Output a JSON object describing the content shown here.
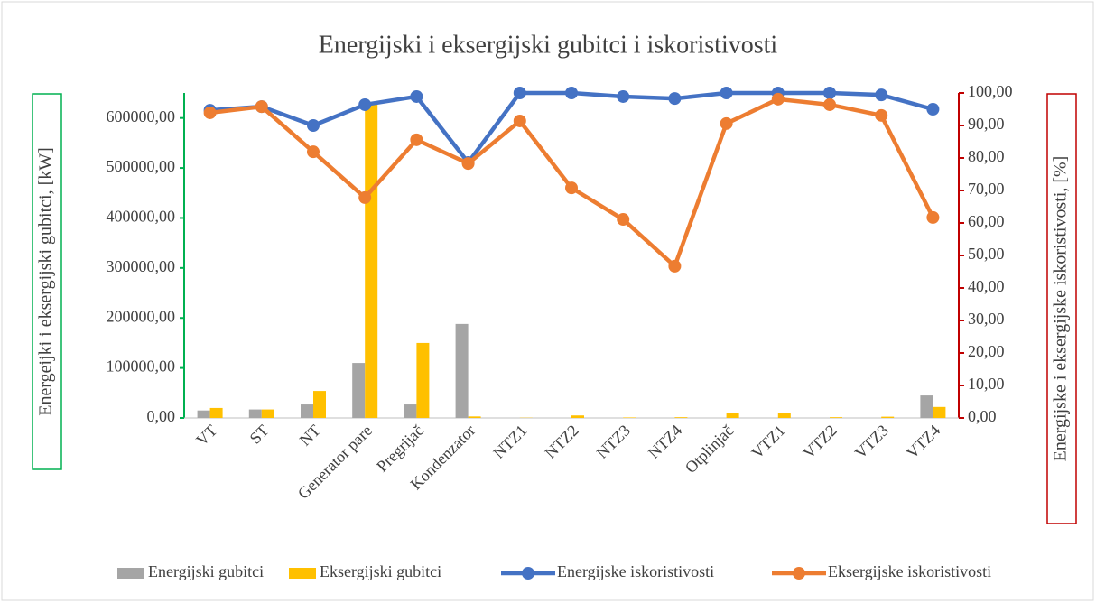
{
  "chart_data": {
    "type": "bar-line",
    "title": "Energijski i eksergijski gubitci i iskoristivosti",
    "y_label": "Energeijki i eksergijski gubitci, [kW]",
    "y2_label": "Energijske i eksergijske iskoristivosti, [%]",
    "categories": [
      "VT",
      "ST",
      "NT",
      "Generator pare",
      "Pregrijač",
      "Kondenzator",
      "NTZ1",
      "NTZ2",
      "NTZ3",
      "NTZ4",
      "Otplinjač",
      "VTZ1",
      "VTZ2",
      "VTZ3",
      "VTZ4"
    ],
    "series": [
      {
        "name": "Energijski gubitci",
        "type": "bar",
        "color": "#a5a5a5",
        "values": [
          15000,
          17000,
          27000,
          110000,
          27000,
          188000,
          0,
          0,
          0,
          0,
          0,
          0,
          0,
          0,
          45000
        ]
      },
      {
        "name": "Eksergijski gubitci",
        "type": "bar",
        "color": "#ffc000",
        "values": [
          20000,
          17000,
          54000,
          630000,
          150000,
          3000,
          500,
          5000,
          1000,
          1500,
          9000,
          9000,
          1500,
          2500,
          22000
        ]
      },
      {
        "name": "Energijske iskoristivosti",
        "type": "line",
        "axis": "y2",
        "color": "#4472c4",
        "values": [
          94.7,
          95.8,
          90,
          96.4,
          98.9,
          78.6,
          100,
          100,
          98.9,
          98.3,
          100,
          100,
          100,
          99.4,
          95
        ]
      },
      {
        "name": "Eksergijske iskoristivosti",
        "type": "line",
        "axis": "y2",
        "color": "#ed7d31",
        "values": [
          93.9,
          95.8,
          81.9,
          67.8,
          85.6,
          78.3,
          91.4,
          70.8,
          61.1,
          46.7,
          90.6,
          98.1,
          96.4,
          93.1,
          61.7
        ]
      }
    ],
    "ylim": [
      0,
      650000
    ],
    "yticks": [
      {
        "value": 0,
        "label": "0,00"
      },
      {
        "value": 100000,
        "label": "100000,00"
      },
      {
        "value": 200000,
        "label": "200000,00"
      },
      {
        "value": 300000,
        "label": "300000,00"
      },
      {
        "value": 400000,
        "label": "400000,00"
      },
      {
        "value": 500000,
        "label": "500000,00"
      },
      {
        "value": 600000,
        "label": "600000,00"
      }
    ],
    "y2lim": [
      0,
      100
    ],
    "y2ticks": [
      {
        "value": 0,
        "label": "0,00"
      },
      {
        "value": 10,
        "label": "10,00"
      },
      {
        "value": 20,
        "label": "20,00"
      },
      {
        "value": 30,
        "label": "30,00"
      },
      {
        "value": 40,
        "label": "40,00"
      },
      {
        "value": 50,
        "label": "50,00"
      },
      {
        "value": 60,
        "label": "60,00"
      },
      {
        "value": 70,
        "label": "70,00"
      },
      {
        "value": 80,
        "label": "80,00"
      },
      {
        "value": 90,
        "label": "90,00"
      },
      {
        "value": 100,
        "label": "100,00"
      }
    ],
    "y_axis_color": "#00b050",
    "y2_axis_color": "#c00000",
    "legend": "bottom"
  }
}
